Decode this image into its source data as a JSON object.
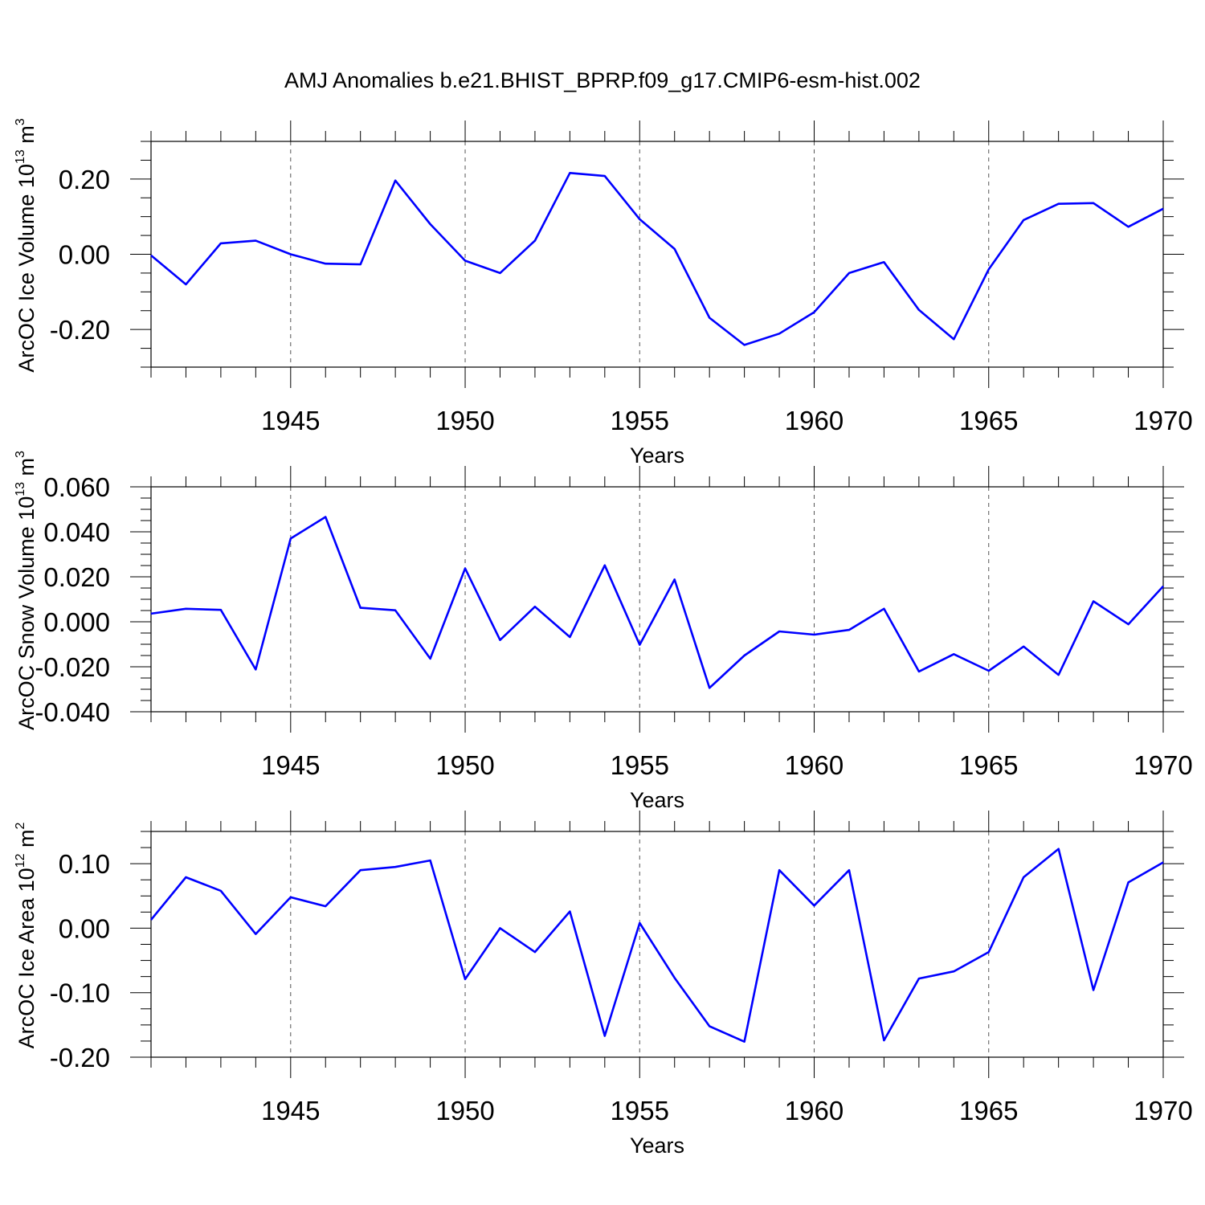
{
  "chart_data": {
    "title": "AMJ Anomalies b.e21.BHIST_BPRP.f09_g17.CMIP6-esm-hist.002",
    "line_color": "#0000ff",
    "panels": [
      {
        "type": "line",
        "ylabel": "ArcOC Ice Volume 10",
        "ylabel_exp": "13",
        "ylabel_unit": " m",
        "ylabel_unit_exp": "3",
        "xlabel": "Years",
        "xlim": [
          1941,
          1970
        ],
        "ylim": [
          -0.3,
          0.3
        ],
        "yticks": [
          -0.2,
          0.0,
          0.2
        ],
        "ytick_labels": [
          "-0.20",
          "0.00",
          "0.20"
        ],
        "xticks": [
          1945,
          1950,
          1955,
          1960,
          1965,
          1970
        ],
        "xtick_labels": [
          "1945",
          "1950",
          "1955",
          "1960",
          "1965",
          "1970"
        ],
        "grid": "x-major-dashed",
        "x": [
          1941,
          1942,
          1943,
          1944,
          1945,
          1946,
          1947,
          1948,
          1949,
          1950,
          1951,
          1952,
          1953,
          1954,
          1955,
          1956,
          1957,
          1958,
          1959,
          1960,
          1961,
          1962,
          1963,
          1964,
          1965,
          1966,
          1967,
          1968,
          1969,
          1970
        ],
        "values": [
          -0.003,
          -0.08,
          0.029,
          0.036,
          0.0,
          -0.025,
          -0.027,
          0.196,
          0.08,
          -0.017,
          -0.05,
          0.036,
          0.216,
          0.208,
          0.093,
          0.014,
          -0.169,
          -0.241,
          -0.211,
          -0.154,
          -0.05,
          -0.021,
          -0.148,
          -0.226,
          -0.04,
          0.091,
          0.134,
          0.136,
          0.073,
          0.121
        ]
      },
      {
        "type": "line",
        "ylabel": "ArcOC Snow Volume 10",
        "ylabel_exp": "13",
        "ylabel_unit": " m",
        "ylabel_unit_exp": "3",
        "xlabel": "Years",
        "xlim": [
          1941,
          1970
        ],
        "ylim": [
          -0.04,
          0.06
        ],
        "yticks": [
          -0.04,
          -0.02,
          0.0,
          0.02,
          0.04,
          0.06
        ],
        "ytick_labels": [
          "-0.040",
          "-0.020",
          "0.000",
          "0.020",
          "0.040",
          "0.060"
        ],
        "xticks": [
          1945,
          1950,
          1955,
          1960,
          1965,
          1970
        ],
        "xtick_labels": [
          "1945",
          "1950",
          "1955",
          "1960",
          "1965",
          "1970"
        ],
        "grid": "x-major-dashed",
        "x": [
          1941,
          1942,
          1943,
          1944,
          1945,
          1946,
          1947,
          1948,
          1949,
          1950,
          1951,
          1952,
          1953,
          1954,
          1955,
          1956,
          1957,
          1958,
          1959,
          1960,
          1961,
          1962,
          1963,
          1964,
          1965,
          1966,
          1967,
          1968,
          1969,
          1970
        ],
        "values": [
          0.0036,
          0.0058,
          0.0053,
          -0.0212,
          0.037,
          0.0466,
          0.0062,
          0.0051,
          -0.0164,
          0.0237,
          -0.0081,
          0.0067,
          -0.0068,
          0.0251,
          -0.0102,
          0.0188,
          -0.0294,
          -0.015,
          -0.0043,
          -0.0057,
          -0.0036,
          0.0058,
          -0.0221,
          -0.0144,
          -0.0218,
          -0.011,
          -0.0236,
          0.0091,
          -0.0011,
          0.0158
        ]
      },
      {
        "type": "line",
        "ylabel": "ArcOC Ice Area 10",
        "ylabel_exp": "12",
        "ylabel_unit": " m",
        "ylabel_unit_exp": "2",
        "xlabel": "Years",
        "xlim": [
          1941,
          1970
        ],
        "ylim": [
          -0.2,
          0.15
        ],
        "yticks": [
          -0.2,
          -0.1,
          0.0,
          0.1
        ],
        "ytick_labels": [
          "-0.20",
          "-0.10",
          "0.00",
          "0.10"
        ],
        "xticks": [
          1945,
          1950,
          1955,
          1960,
          1965,
          1970
        ],
        "xtick_labels": [
          "1945",
          "1950",
          "1955",
          "1960",
          "1965",
          "1970"
        ],
        "grid": "x-major-dashed",
        "x": [
          1941,
          1942,
          1943,
          1944,
          1945,
          1946,
          1947,
          1948,
          1949,
          1950,
          1951,
          1952,
          1953,
          1954,
          1955,
          1956,
          1957,
          1958,
          1959,
          1960,
          1961,
          1962,
          1963,
          1964,
          1965,
          1966,
          1967,
          1968,
          1969,
          1970
        ],
        "values": [
          0.013,
          0.079,
          0.058,
          -0.009,
          0.048,
          0.034,
          0.09,
          0.095,
          0.105,
          -0.079,
          0.0,
          -0.037,
          0.026,
          -0.167,
          0.008,
          -0.077,
          -0.152,
          -0.176,
          0.09,
          0.035,
          0.09,
          -0.174,
          -0.078,
          -0.067,
          -0.037,
          0.079,
          0.123,
          -0.096,
          0.071,
          0.102
        ]
      }
    ]
  }
}
